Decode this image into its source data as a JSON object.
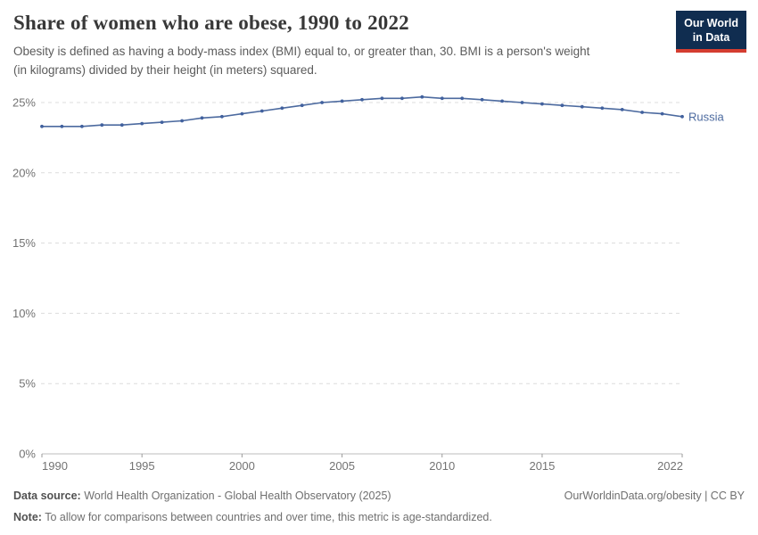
{
  "header": {
    "title": "Share of women who are obese, 1990 to 2022",
    "subtitle_lines": [
      "Obesity is defined as having a body-mass index (BMI) equal to, or greater than, 30. BMI is a person's weight",
      "(in kilograms) divided by their height (in meters) squared."
    ],
    "logo": {
      "line1": "Our World",
      "line2": "in Data",
      "bg_color": "#102d50",
      "accent_color": "#d43d30"
    }
  },
  "chart_data": {
    "type": "line",
    "title": "Share of women who are obese, 1990 to 2022",
    "xlabel": "",
    "ylabel": "",
    "x": [
      1990,
      1991,
      1992,
      1993,
      1994,
      1995,
      1996,
      1997,
      1998,
      1999,
      2000,
      2001,
      2002,
      2003,
      2004,
      2005,
      2006,
      2007,
      2008,
      2009,
      2010,
      2011,
      2012,
      2013,
      2014,
      2015,
      2016,
      2017,
      2018,
      2019,
      2020,
      2021,
      2022
    ],
    "series": [
      {
        "name": "Russia",
        "color": "#4c6a9f",
        "marker_color": "#41619e",
        "values": [
          23.3,
          23.3,
          23.3,
          23.4,
          23.4,
          23.5,
          23.6,
          23.7,
          23.9,
          24.0,
          24.2,
          24.4,
          24.6,
          24.8,
          25.0,
          25.1,
          25.2,
          25.3,
          25.3,
          25.4,
          25.3,
          25.3,
          25.2,
          25.1,
          25.0,
          24.9,
          24.8,
          24.7,
          24.6,
          24.5,
          24.3,
          24.2,
          24.0
        ]
      }
    ],
    "ylim": [
      0,
      26.5
    ],
    "yticks": [
      {
        "value": 0,
        "label": "0%"
      },
      {
        "value": 5,
        "label": "5%"
      },
      {
        "value": 10,
        "label": "10%"
      },
      {
        "value": 15,
        "label": "15%"
      },
      {
        "value": 20,
        "label": "20%"
      },
      {
        "value": 25,
        "label": "25%"
      }
    ],
    "xticks": [
      {
        "value": 1990,
        "label": "1990"
      },
      {
        "value": 1995,
        "label": "1995"
      },
      {
        "value": 2000,
        "label": "2000"
      },
      {
        "value": 2005,
        "label": "2005"
      },
      {
        "value": 2010,
        "label": "2010"
      },
      {
        "value": 2015,
        "label": "2015"
      },
      {
        "value": 2022,
        "label": "2022"
      }
    ],
    "grid": "horizontal-dashed",
    "legend": "end-of-line-label",
    "colors": {
      "gridline": "#dcdcdc",
      "axis_line": "#bdbdbd",
      "tick_mark": "#9a9a9a",
      "tick_label": "#737373"
    }
  },
  "footer": {
    "datasource_label": "Data source:",
    "datasource_text": " World Health Organization - Global Health Observatory (2025)",
    "rights_text": "OurWorldinData.org/obesity | CC BY",
    "note_label": "Note:",
    "note_text": " To allow for comparisons between countries and over time, this metric is age-standardized."
  }
}
